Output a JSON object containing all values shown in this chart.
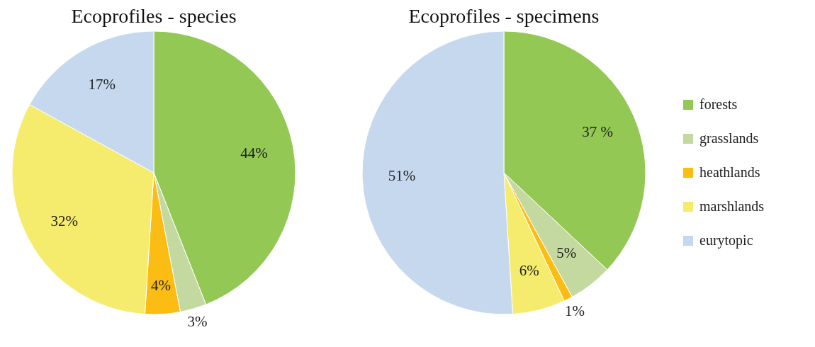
{
  "chart_data": [
    {
      "type": "pie",
      "title": "Ecoprofiles - species",
      "categories": [
        null,
        null,
        null,
        null,
        null
      ],
      "values": [
        44,
        3,
        4,
        32,
        17
      ],
      "colors": [
        "#92c853",
        "#c4d9a0",
        "#fbbd13",
        "#f5ec6e",
        "#c5d8ee"
      ],
      "value_labels": [
        "44%",
        "3%",
        "4%",
        "32%",
        "17%"
      ],
      "legend": false
    },
    {
      "type": "pie",
      "title": "Ecoprofiles - specimens",
      "categories": [
        "forests",
        "grasslands",
        "heathlands",
        "marshlands",
        "eurytopic"
      ],
      "values": [
        37,
        5,
        1,
        6,
        51
      ],
      "colors": [
        "#92c853",
        "#c4d9a0",
        "#fbbd13",
        "#f5ec6e",
        "#c5d8ee"
      ],
      "value_labels": [
        "37 %",
        "5%",
        "1%",
        "6%",
        "51%"
      ],
      "legend": "right"
    }
  ]
}
